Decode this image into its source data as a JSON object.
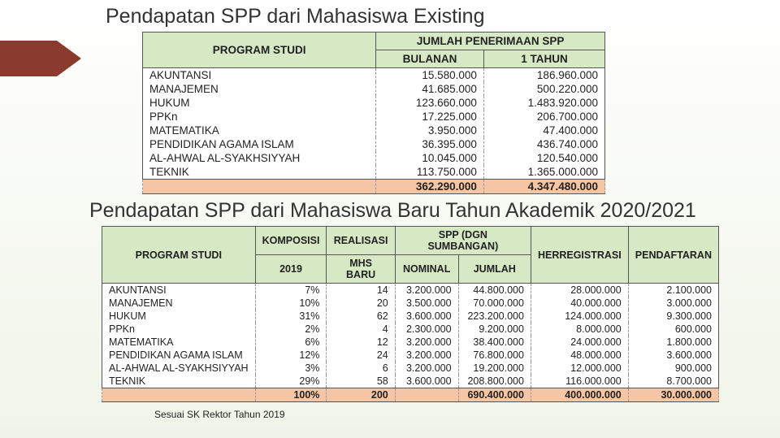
{
  "colors": {
    "header_bg": "#d6e8c4",
    "total_bg": "#f5c6a5",
    "arrow": "#8b3a2e",
    "page_bg_top": "#ffffff",
    "page_bg_bottom": "#f0f4e8",
    "text": "#222222",
    "border": "#555555"
  },
  "typography": {
    "title_fontsize": 25,
    "table1_fontsize": 13.5,
    "table2_fontsize": 12.5,
    "footnote_fontsize": 12,
    "font_family": "Arial"
  },
  "section1": {
    "title": "Pendapatan SPP dari Mahasiswa Existing",
    "headers": {
      "program": "PROGRAM STUDI",
      "group": "JUMLAH PENERIMAAN SPP",
      "monthly": "BULANAN",
      "yearly": "1 TAHUN"
    },
    "rows": [
      {
        "program": "AKUNTANSI",
        "monthly": "15.580.000",
        "yearly": "186.960.000"
      },
      {
        "program": "MANAJEMEN",
        "monthly": "41.685.000",
        "yearly": "500.220.000"
      },
      {
        "program": "HUKUM",
        "monthly": "123.660.000",
        "yearly": "1.483.920.000"
      },
      {
        "program": "PPKn",
        "monthly": "17.225.000",
        "yearly": "206.700.000"
      },
      {
        "program": "MATEMATIKA",
        "monthly": "3.950.000",
        "yearly": "47.400.000"
      },
      {
        "program": "PENDIDIKAN AGAMA ISLAM",
        "monthly": "36.395.000",
        "yearly": "436.740.000"
      },
      {
        "program": "AL-AHWAL AL-SYAKHSIYYAH",
        "monthly": "10.045.000",
        "yearly": "120.540.000"
      },
      {
        "program": "TEKNIK",
        "monthly": "113.750.000",
        "yearly": "1.365.000.000"
      }
    ],
    "total": {
      "program": "",
      "monthly": "362.290.000",
      "yearly": "4.347.480.000"
    }
  },
  "section2": {
    "title": "Pendapatan SPP dari Mahasiswa Baru Tahun Akademik 2020/2021",
    "headers": {
      "program": "PROGRAM STUDI",
      "komposisi": "KOMPOSISI",
      "y2019": "2019",
      "realisasi": "REALISASI",
      "mhs": "MHS BARU",
      "spp_group": "SPP (DGN SUMBANGAN)",
      "nominal": "NOMINAL",
      "jumlah": "JUMLAH",
      "herreg": "HERREGISTRASI",
      "pendaftaran": "PENDAFTARAN"
    },
    "rows": [
      {
        "program": "AKUNTANSI",
        "komposisi": "7%",
        "realisasi": "14",
        "nominal": "3.200.000",
        "jumlah": "44.800.000",
        "herreg": "28.000.000",
        "pendaftaran": "2.100.000"
      },
      {
        "program": "MANAJEMEN",
        "komposisi": "10%",
        "realisasi": "20",
        "nominal": "3.500.000",
        "jumlah": "70.000.000",
        "herreg": "40.000.000",
        "pendaftaran": "3.000.000"
      },
      {
        "program": "HUKUM",
        "komposisi": "31%",
        "realisasi": "62",
        "nominal": "3.600.000",
        "jumlah": "223.200.000",
        "herreg": "124.000.000",
        "pendaftaran": "9.300.000"
      },
      {
        "program": "PPKn",
        "komposisi": "2%",
        "realisasi": "4",
        "nominal": "2.300.000",
        "jumlah": "9.200.000",
        "herreg": "8.000.000",
        "pendaftaran": "600.000"
      },
      {
        "program": "MATEMATIKA",
        "komposisi": "6%",
        "realisasi": "12",
        "nominal": "3.200.000",
        "jumlah": "38.400.000",
        "herreg": "24.000.000",
        "pendaftaran": "1.800.000"
      },
      {
        "program": "PENDIDIKAN AGAMA ISLAM",
        "komposisi": "12%",
        "realisasi": "24",
        "nominal": "3.200.000",
        "jumlah": "76.800.000",
        "herreg": "48.000.000",
        "pendaftaran": "3.600.000"
      },
      {
        "program": "AL-AHWAL AL-SYAKHSIYYAH",
        "komposisi": "3%",
        "realisasi": "6",
        "nominal": "3.200.000",
        "jumlah": "19.200.000",
        "herreg": "12.000.000",
        "pendaftaran": "900.000"
      },
      {
        "program": "TEKNIK",
        "komposisi": "29%",
        "realisasi": "58",
        "nominal": "3.600.000",
        "jumlah": "208.800.000",
        "herreg": "116.000.000",
        "pendaftaran": "8.700.000"
      }
    ],
    "total": {
      "program": "",
      "komposisi": "100%",
      "realisasi": "200",
      "nominal": "",
      "jumlah": "690.400.000",
      "herreg": "400.000.000",
      "pendaftaran": "30.000.000"
    }
  },
  "footnote": "Sesuai SK Rektor Tahun 2019"
}
